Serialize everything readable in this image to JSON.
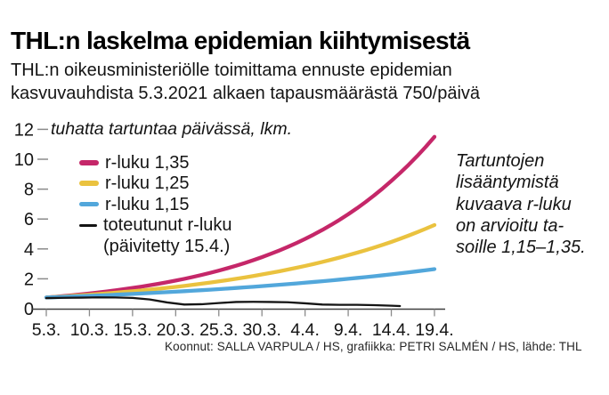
{
  "header": {
    "title": "THL:n laskelma epidemian kiihtymisestä",
    "subtitle_line1": "THL:n oikeusministeriölle toimittama ennuste epidemian",
    "subtitle_line2": "kasvuvauhdista 5.3.2021 alkaen tapausmäärästä 750/päivä"
  },
  "chart_data": {
    "type": "line",
    "title": "THL:n laskelma epidemian kiihtymisestä",
    "ylabel": "tuhatta tartuntaa päivässä, lkm.",
    "xlabel": "",
    "ylim": [
      0,
      12
    ],
    "yticks": [
      0,
      2,
      4,
      6,
      8,
      10,
      12
    ],
    "grid": false,
    "legend_position": "inside-top-left",
    "categories": [
      "5.3.",
      "10.3.",
      "15.3.",
      "20.3.",
      "25.3.",
      "30.3.",
      "4.4.",
      "9.4.",
      "14.4.",
      "19.4."
    ],
    "tick_day_offsets": [
      0,
      5,
      10,
      15,
      20,
      25,
      30,
      35,
      40,
      45
    ],
    "series": [
      {
        "name": "r-luku 1,35",
        "color": "#c52769",
        "interp": "exponential",
        "values": [
          0.75,
          1.02,
          1.39,
          1.88,
          2.55,
          3.45,
          4.67,
          6.32,
          8.55,
          11.5
        ]
      },
      {
        "name": "r-luku 1,25",
        "color": "#eac23f",
        "interp": "exponential",
        "values": [
          0.75,
          0.94,
          1.17,
          1.46,
          1.83,
          2.29,
          2.86,
          3.58,
          4.47,
          5.6
        ]
      },
      {
        "name": "r-luku 1,15",
        "color": "#52a7db",
        "interp": "exponential",
        "values": [
          0.75,
          0.86,
          0.99,
          1.14,
          1.31,
          1.51,
          1.74,
          2.0,
          2.3,
          2.65
        ]
      },
      {
        "name": "toteutunut r-luku (päivitetty 15.4.)",
        "color": "#141414",
        "interp": "linear",
        "points_day_value": [
          [
            0,
            0.71
          ],
          [
            2,
            0.73
          ],
          [
            4,
            0.74
          ],
          [
            6,
            0.76
          ],
          [
            8,
            0.75
          ],
          [
            10,
            0.72
          ],
          [
            12,
            0.62
          ],
          [
            14,
            0.42
          ],
          [
            16,
            0.28
          ],
          [
            18,
            0.3
          ],
          [
            20,
            0.38
          ],
          [
            22,
            0.45
          ],
          [
            24,
            0.46
          ],
          [
            26,
            0.45
          ],
          [
            28,
            0.43
          ],
          [
            30,
            0.36
          ],
          [
            32,
            0.28
          ],
          [
            34,
            0.26
          ],
          [
            36,
            0.26
          ],
          [
            38,
            0.24
          ],
          [
            40,
            0.2
          ],
          [
            41,
            0.18
          ]
        ]
      }
    ],
    "legend": [
      {
        "label": "r-luku 1,35",
        "color": "#c52769"
      },
      {
        "label": "r-luku 1,25",
        "color": "#eac23f"
      },
      {
        "label": "r-luku 1,15",
        "color": "#52a7db"
      },
      {
        "label": "toteutunut r-luku",
        "label2": "(päivitetty 15.4.)",
        "color": "#141414"
      }
    ],
    "annotation": "Tartuntojen\nlisääntymistä\nkuvaava r-luku\non arvioitu ta-\nsoille 1,15–1,35.",
    "axis_color": "#3f3f3f",
    "tick_color": "#8a8a8a",
    "label_color": "#141414"
  },
  "footer": {
    "credit": "Koonnut: SALLA VARPULA / HS, grafiikka: PETRI SALMÉN / HS, lähde: THL"
  }
}
